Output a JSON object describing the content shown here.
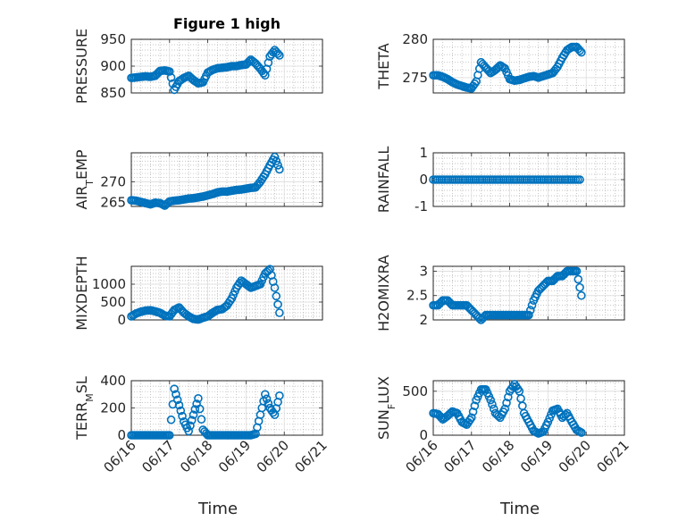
{
  "figure": {
    "marker_color": "#0072BD",
    "x_tick_labels": [
      "06/16",
      "06/17",
      "06/18",
      "06/19",
      "06/20",
      "06/21"
    ],
    "x_label": "Time"
  },
  "chart_data": [
    {
      "type": "scatter",
      "title": "Figure 1 high",
      "ylabel": "PRESSURE",
      "ylim": [
        850,
        950
      ],
      "yticks": [
        850,
        900,
        950
      ],
      "xlabel": "",
      "xlim_days": "06/16 - 06/19 (axis ends at 06/20)",
      "x": [
        "06/16 00:00",
        "06/16 03:00",
        "06/16 06:00",
        "06/16 09:00",
        "06/16 12:00",
        "06/16 15:00",
        "06/16 18:00",
        "06/16 21:00",
        "06/17 00:00",
        "06/17 03:00",
        "06/17 06:00",
        "06/17 09:00",
        "06/17 12:00",
        "06/17 15:00",
        "06/17 18:00",
        "06/17 21:00",
        "06/18 00:00",
        "06/18 03:00",
        "06/18 06:00",
        "06/18 09:00",
        "06/18 12:00",
        "06/18 15:00",
        "06/18 18:00",
        "06/18 21:00",
        "06/19 00:00",
        "06/19 03:00",
        "06/19 06:00",
        "06/19 09:00",
        "06/19 12:00",
        "06/19 15:00",
        "06/19 18:00",
        "06/19 21:00"
      ],
      "y": [
        878,
        879,
        880,
        881,
        880,
        882,
        891,
        892,
        890,
        856,
        872,
        878,
        882,
        874,
        868,
        870,
        888,
        893,
        896,
        897,
        898,
        900,
        900,
        902,
        903,
        912,
        905,
        895,
        883,
        918,
        930,
        920
      ]
    },
    {
      "type": "scatter",
      "ylabel": "THETA",
      "ylim": [
        273,
        280
      ],
      "yticks": [
        275,
        280
      ],
      "x": [
        "06/16 00:00",
        "06/16 03:00",
        "06/16 06:00",
        "06/16 09:00",
        "06/16 12:00",
        "06/16 15:00",
        "06/16 18:00",
        "06/16 21:00",
        "06/17 00:00",
        "06/17 03:00",
        "06/17 06:00",
        "06/17 09:00",
        "06/17 12:00",
        "06/17 15:00",
        "06/17 18:00",
        "06/17 21:00",
        "06/18 00:00",
        "06/18 03:00",
        "06/18 06:00",
        "06/18 09:00",
        "06/18 12:00",
        "06/18 15:00",
        "06/18 18:00",
        "06/18 21:00",
        "06/19 00:00",
        "06/19 03:00",
        "06/19 06:00",
        "06/19 09:00",
        "06/19 12:00",
        "06/19 15:00",
        "06/19 18:00",
        "06/19 21:00"
      ],
      "y": [
        275.3,
        275.3,
        275.1,
        274.8,
        274.4,
        274.1,
        273.9,
        273.7,
        273.6,
        274.5,
        277.0,
        276.3,
        275.6,
        276.0,
        276.6,
        276.2,
        274.8,
        274.6,
        274.7,
        274.9,
        275.1,
        275.2,
        275.0,
        275.2,
        275.4,
        275.6,
        276.4,
        277.6,
        278.6,
        279.0,
        279.0,
        278.3
      ]
    },
    {
      "type": "scatter",
      "ylabel": "AIR_TEMP",
      "ylim": [
        264,
        277
      ],
      "yticks": [
        265,
        270
      ],
      "x": [
        "06/16 00:00",
        "06/16 03:00",
        "06/16 06:00",
        "06/16 09:00",
        "06/16 12:00",
        "06/16 15:00",
        "06/16 18:00",
        "06/16 21:00",
        "06/17 00:00",
        "06/17 03:00",
        "06/17 06:00",
        "06/17 09:00",
        "06/17 12:00",
        "06/17 15:00",
        "06/17 18:00",
        "06/17 21:00",
        "06/18 00:00",
        "06/18 03:00",
        "06/18 06:00",
        "06/18 09:00",
        "06/18 12:00",
        "06/18 15:00",
        "06/18 18:00",
        "06/18 21:00",
        "06/19 00:00",
        "06/19 03:00",
        "06/19 06:00",
        "06/19 09:00",
        "06/19 12:00",
        "06/19 15:00",
        "06/19 18:00",
        "06/19 21:00"
      ],
      "y": [
        265.5,
        265.4,
        265.1,
        264.8,
        264.5,
        264.9,
        264.8,
        264.2,
        265.2,
        265.4,
        265.5,
        265.7,
        265.9,
        266.0,
        266.2,
        266.4,
        266.7,
        267.0,
        267.4,
        267.6,
        267.6,
        267.8,
        268.0,
        268.1,
        268.3,
        268.5,
        268.6,
        270.0,
        271.8,
        274.0,
        276.0,
        273.0
      ]
    },
    {
      "type": "scatter",
      "ylabel": "RAINFALL",
      "ylim": [
        -1,
        1
      ],
      "yticks": [
        -1,
        0,
        1
      ],
      "x": [
        "06/16 00:00",
        "06/16 04:00",
        "06/16 08:00",
        "06/16 12:00",
        "06/16 16:00",
        "06/16 20:00",
        "06/17 00:00",
        "06/17 04:00",
        "06/17 08:00",
        "06/17 12:00",
        "06/17 16:00",
        "06/17 20:00",
        "06/18 00:00",
        "06/18 04:00",
        "06/18 08:00",
        "06/18 12:00",
        "06/18 16:00",
        "06/18 20:00",
        "06/19 00:00",
        "06/19 04:00",
        "06/19 08:00",
        "06/19 12:00",
        "06/19 16:00",
        "06/19 20:00"
      ],
      "y": [
        0,
        0,
        0,
        0,
        0,
        0,
        0,
        0,
        0,
        0,
        0,
        0,
        0,
        0,
        0,
        0,
        0,
        0,
        0,
        0,
        0,
        0,
        0,
        0
      ]
    },
    {
      "type": "scatter",
      "ylabel": "MIXDEPTH",
      "ylim": [
        0,
        1500
      ],
      "yticks": [
        0,
        500,
        1000
      ],
      "x": [
        "06/16 00:00",
        "06/16 03:00",
        "06/16 06:00",
        "06/16 09:00",
        "06/16 12:00",
        "06/16 15:00",
        "06/16 18:00",
        "06/16 21:00",
        "06/17 00:00",
        "06/17 03:00",
        "06/17 06:00",
        "06/17 09:00",
        "06/17 12:00",
        "06/17 15:00",
        "06/17 18:00",
        "06/17 21:00",
        "06/18 00:00",
        "06/18 03:00",
        "06/18 06:00",
        "06/18 09:00",
        "06/18 12:00",
        "06/18 15:00",
        "06/18 18:00",
        "06/18 21:00",
        "06/19 00:00",
        "06/19 03:00",
        "06/19 06:00",
        "06/19 09:00",
        "06/19 12:00",
        "06/19 15:00",
        "06/19 18:00",
        "06/19 21:00"
      ],
      "y": [
        100,
        180,
        230,
        260,
        270,
        240,
        200,
        120,
        100,
        280,
        350,
        200,
        100,
        30,
        10,
        60,
        100,
        200,
        280,
        300,
        400,
        600,
        900,
        1100,
        1000,
        900,
        950,
        1000,
        1300,
        1420,
        900,
        200
      ]
    },
    {
      "type": "scatter",
      "ylabel": "H2OMIXRA",
      "ylim": [
        2,
        3.1
      ],
      "yticks": [
        2,
        2.5,
        3
      ],
      "x": [
        "06/16 00:00",
        "06/16 03:00",
        "06/16 06:00",
        "06/16 09:00",
        "06/16 12:00",
        "06/16 15:00",
        "06/16 18:00",
        "06/16 21:00",
        "06/17 00:00",
        "06/17 03:00",
        "06/17 06:00",
        "06/17 09:00",
        "06/17 12:00",
        "06/17 15:00",
        "06/17 18:00",
        "06/17 21:00",
        "06/18 00:00",
        "06/18 03:00",
        "06/18 06:00",
        "06/18 09:00",
        "06/18 12:00",
        "06/18 15:00",
        "06/18 18:00",
        "06/18 21:00",
        "06/19 00:00",
        "06/19 03:00",
        "06/19 06:00",
        "06/19 09:00",
        "06/19 12:00",
        "06/19 15:00",
        "06/19 18:00",
        "06/19 21:00"
      ],
      "y": [
        2.3,
        2.3,
        2.4,
        2.4,
        2.3,
        2.3,
        2.3,
        2.3,
        2.2,
        2.1,
        2.0,
        2.1,
        2.1,
        2.1,
        2.1,
        2.1,
        2.1,
        2.1,
        2.1,
        2.1,
        2.1,
        2.4,
        2.6,
        2.7,
        2.8,
        2.8,
        2.9,
        2.9,
        3.0,
        3.0,
        3.0,
        2.5
      ]
    },
    {
      "type": "scatter",
      "ylabel": "TERR_MSL",
      "ylim": [
        0,
        400
      ],
      "yticks": [
        0,
        200,
        400
      ],
      "x": [
        "06/16 00:00",
        "06/16 03:00",
        "06/16 06:00",
        "06/16 09:00",
        "06/16 12:00",
        "06/16 15:00",
        "06/16 18:00",
        "06/16 21:00",
        "06/17 00:00",
        "06/17 03:00",
        "06/17 06:00",
        "06/17 09:00",
        "06/17 12:00",
        "06/17 15:00",
        "06/17 18:00",
        "06/17 21:00",
        "06/18 00:00",
        "06/18 03:00",
        "06/18 06:00",
        "06/18 09:00",
        "06/18 12:00",
        "06/18 15:00",
        "06/18 18:00",
        "06/18 21:00",
        "06/19 00:00",
        "06/19 03:00",
        "06/19 06:00",
        "06/19 09:00",
        "06/19 12:00",
        "06/19 15:00",
        "06/19 18:00",
        "06/19 21:00"
      ],
      "y": [
        0,
        0,
        0,
        0,
        0,
        0,
        0,
        0,
        0,
        340,
        220,
        100,
        30,
        150,
        270,
        40,
        0,
        0,
        0,
        0,
        0,
        0,
        0,
        0,
        0,
        0,
        10,
        150,
        300,
        200,
        150,
        290
      ]
    },
    {
      "type": "scatter",
      "ylabel": "SUN_FLUX",
      "ylim": [
        0,
        620
      ],
      "yticks": [
        0,
        500
      ],
      "x": [
        "06/16 00:00",
        "06/16 03:00",
        "06/16 06:00",
        "06/16 09:00",
        "06/16 12:00",
        "06/16 15:00",
        "06/16 18:00",
        "06/16 21:00",
        "06/17 00:00",
        "06/17 03:00",
        "06/17 06:00",
        "06/17 09:00",
        "06/17 12:00",
        "06/17 15:00",
        "06/17 18:00",
        "06/17 21:00",
        "06/18 00:00",
        "06/18 03:00",
        "06/18 06:00",
        "06/18 09:00",
        "06/18 12:00",
        "06/18 15:00",
        "06/18 18:00",
        "06/18 21:00",
        "06/19 00:00",
        "06/19 03:00",
        "06/19 06:00",
        "06/19 09:00",
        "06/19 12:00",
        "06/19 15:00",
        "06/19 18:00",
        "06/19 21:00"
      ],
      "y": [
        250,
        240,
        180,
        220,
        270,
        250,
        150,
        120,
        200,
        400,
        520,
        520,
        400,
        250,
        200,
        300,
        500,
        580,
        500,
        250,
        150,
        50,
        20,
        40,
        150,
        280,
        300,
        200,
        250,
        150,
        60,
        30
      ]
    }
  ]
}
